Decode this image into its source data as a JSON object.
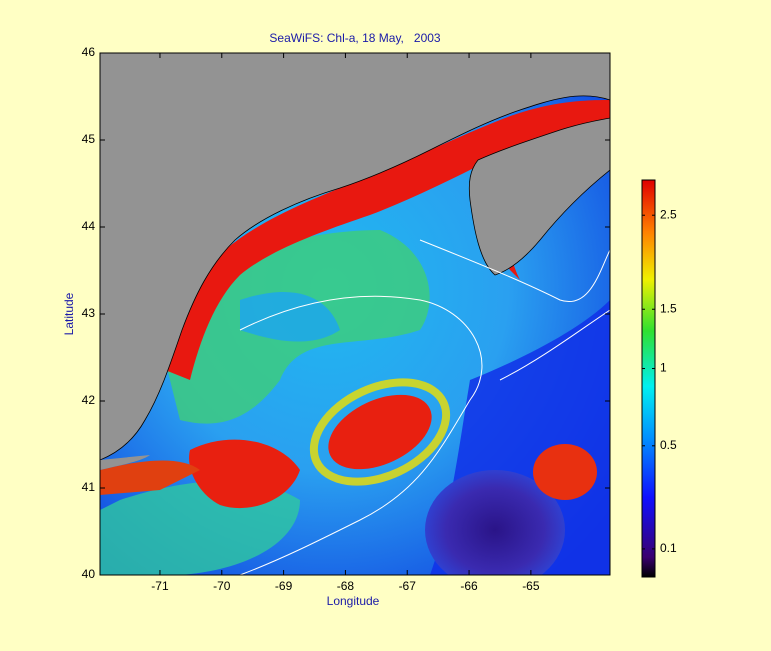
{
  "chart_data": {
    "type": "map",
    "title": "SeaWiFS: Chl-a, 18 May,   2003",
    "xlabel": "Longitude",
    "ylabel": "Latitude",
    "xlim": [
      -71.97,
      -63.72
    ],
    "xticks": [
      -71,
      -70,
      -69,
      -68,
      -67,
      -66,
      -65
    ],
    "ylim": [
      40,
      46
    ],
    "yticks": [
      40,
      41,
      42,
      43,
      44,
      45,
      46
    ],
    "colorbar": {
      "scale": "sqrt",
      "clim": [
        0.044,
        2.94
      ],
      "ticks": [
        0.1,
        0.5,
        1,
        1.5,
        2.5
      ]
    }
  }
}
